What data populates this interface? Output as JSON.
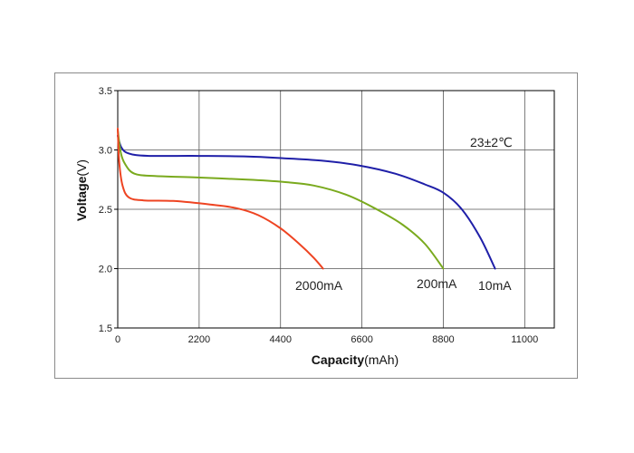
{
  "chart_data": {
    "type": "line",
    "title": "",
    "xlabel_bold": "Capacity",
    "xlabel_unit": "(mAh)",
    "ylabel_bold": "Voltage",
    "ylabel_unit": "(V)",
    "xlim": [
      0,
      11800
    ],
    "ylim": [
      1.5,
      3.5
    ],
    "x_ticks": [
      "0",
      "2200",
      "4400",
      "6600",
      "8800",
      "11000"
    ],
    "x_tick_values": [
      0,
      2200,
      4400,
      6600,
      8800,
      11000
    ],
    "y_ticks": [
      "1.5",
      "2.0",
      "2.5",
      "3.0",
      "3.5"
    ],
    "y_tick_values": [
      1.5,
      2.0,
      2.5,
      3.0,
      3.5
    ],
    "grid": true,
    "annotation": "23±2℃",
    "series": [
      {
        "name": "10mA",
        "color": "#1f1fa8",
        "points": [
          [
            0,
            3.12
          ],
          [
            100,
            3.02
          ],
          [
            300,
            2.97
          ],
          [
            800,
            2.95
          ],
          [
            2000,
            2.95
          ],
          [
            3500,
            2.945
          ],
          [
            4500,
            2.93
          ],
          [
            5500,
            2.91
          ],
          [
            6500,
            2.87
          ],
          [
            7500,
            2.8
          ],
          [
            8300,
            2.71
          ],
          [
            8800,
            2.64
          ],
          [
            9300,
            2.5
          ],
          [
            9800,
            2.26
          ],
          [
            10200,
            2.0
          ]
        ]
      },
      {
        "name": "200mA",
        "color": "#7aaa1e",
        "points": [
          [
            0,
            3.17
          ],
          [
            80,
            2.98
          ],
          [
            200,
            2.88
          ],
          [
            450,
            2.8
          ],
          [
            1000,
            2.78
          ],
          [
            2000,
            2.77
          ],
          [
            3500,
            2.75
          ],
          [
            4500,
            2.73
          ],
          [
            5300,
            2.7
          ],
          [
            6200,
            2.62
          ],
          [
            7000,
            2.5
          ],
          [
            7700,
            2.37
          ],
          [
            8300,
            2.21
          ],
          [
            8800,
            2.0
          ]
        ]
      },
      {
        "name": "2000mA",
        "color": "#ee4422",
        "points": [
          [
            0,
            3.18
          ],
          [
            40,
            2.9
          ],
          [
            130,
            2.7
          ],
          [
            300,
            2.6
          ],
          [
            700,
            2.575
          ],
          [
            1500,
            2.57
          ],
          [
            2500,
            2.54
          ],
          [
            3200,
            2.51
          ],
          [
            3800,
            2.45
          ],
          [
            4400,
            2.34
          ],
          [
            4900,
            2.21
          ],
          [
            5300,
            2.09
          ],
          [
            5550,
            2.0
          ]
        ]
      }
    ]
  }
}
